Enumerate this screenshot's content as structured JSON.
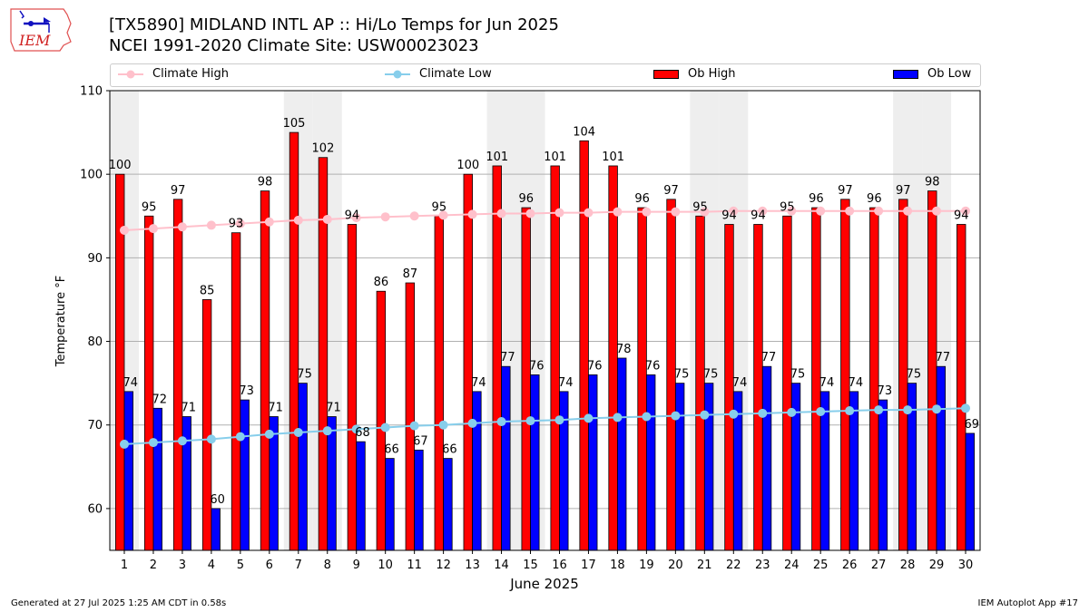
{
  "header": {
    "title_line1": "[TX5890] MIDLAND INTL AP :: Hi/Lo Temps for Jun 2025",
    "title_line2": "NCEI 1991-2020 Climate Site: USW00023023",
    "logo_text": "IEM"
  },
  "footer": {
    "generated": "Generated at 27 Jul 2025 1:25 AM CDT in 0.58s",
    "app": "IEM Autoplot App #17"
  },
  "colors": {
    "ob_high": "#ff0000",
    "ob_low": "#0000ff",
    "climate_high": "#ffc0cb",
    "climate_low": "#87ceeb",
    "weekend_shade": "#eeeeee"
  },
  "chart_data": {
    "type": "bar",
    "title": "[TX5890] MIDLAND INTL AP :: Hi/Lo Temps for Jun 2025",
    "subtitle": "NCEI 1991-2020 Climate Site: USW00023023",
    "xlabel": "June 2025",
    "ylabel": "Temperature °F",
    "ylim": [
      55,
      110
    ],
    "yticks": [
      60,
      70,
      80,
      90,
      100,
      110
    ],
    "grid": true,
    "legend_placement": "top",
    "categories": [
      "1",
      "2",
      "3",
      "4",
      "5",
      "6",
      "7",
      "8",
      "9",
      "10",
      "11",
      "12",
      "13",
      "14",
      "15",
      "16",
      "17",
      "18",
      "19",
      "20",
      "21",
      "22",
      "23",
      "24",
      "25",
      "26",
      "27",
      "28",
      "29",
      "30"
    ],
    "weekend_days": [
      1,
      7,
      8,
      14,
      15,
      21,
      22,
      28,
      29
    ],
    "series": [
      {
        "name": "Ob High",
        "kind": "bar",
        "values": [
          100,
          95,
          97,
          85,
          93,
          98,
          105,
          102,
          94,
          86,
          87,
          95,
          100,
          101,
          96,
          101,
          104,
          101,
          96,
          97,
          95,
          94,
          94,
          95,
          96,
          97,
          96,
          97,
          98,
          94
        ]
      },
      {
        "name": "Ob Low",
        "kind": "bar",
        "values": [
          74,
          72,
          71,
          60,
          73,
          71,
          75,
          71,
          68,
          66,
          67,
          66,
          74,
          77,
          76,
          74,
          76,
          78,
          76,
          75,
          75,
          74,
          77,
          75,
          74,
          74,
          73,
          75,
          77,
          69
        ]
      },
      {
        "name": "Climate High",
        "kind": "line",
        "values": [
          93.3,
          93.5,
          93.7,
          93.9,
          94.1,
          94.3,
          94.5,
          94.6,
          94.8,
          94.9,
          95.0,
          95.1,
          95.2,
          95.3,
          95.3,
          95.4,
          95.4,
          95.5,
          95.5,
          95.5,
          95.5,
          95.6,
          95.6,
          95.6,
          95.6,
          95.6,
          95.6,
          95.6,
          95.6,
          95.6
        ]
      },
      {
        "name": "Climate Low",
        "kind": "line",
        "values": [
          67.7,
          67.9,
          68.1,
          68.3,
          68.6,
          68.9,
          69.1,
          69.3,
          69.5,
          69.7,
          69.9,
          70.0,
          70.2,
          70.4,
          70.5,
          70.6,
          70.8,
          70.9,
          71.0,
          71.1,
          71.2,
          71.3,
          71.4,
          71.5,
          71.6,
          71.7,
          71.8,
          71.8,
          71.9,
          72.0
        ]
      }
    ]
  }
}
